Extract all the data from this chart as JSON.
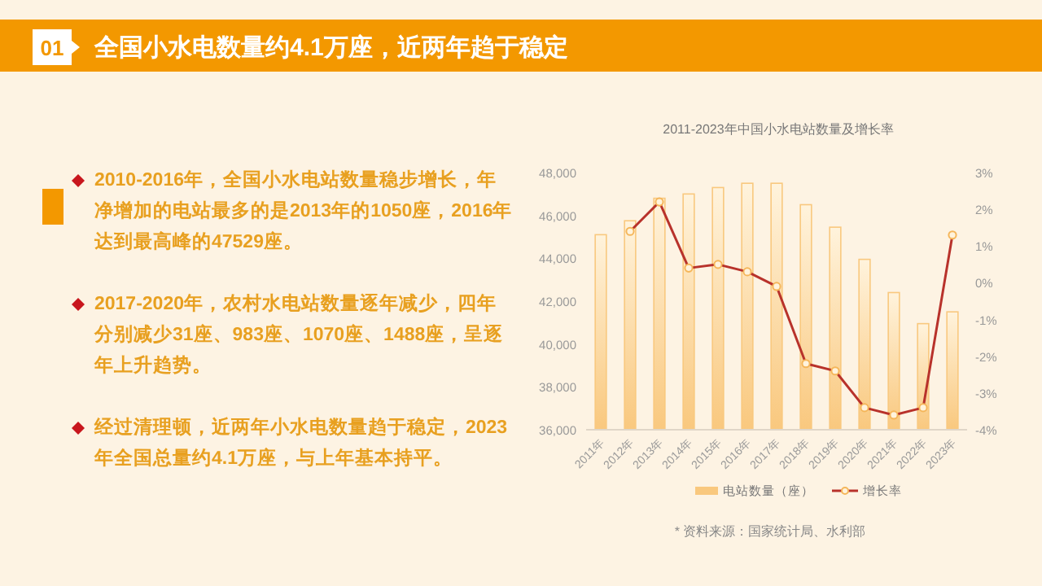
{
  "chart_data": {
    "type": "bar",
    "title": "全国小水电数量约4.1万座，近两年趋于稳定",
    "subtitle": "2011-2023年中国小水电站数量及增长率",
    "annotations": [
      "01",
      "2010-2016年，全国小水电站数量稳步增长，年净增加的电站最多的是2013年的1050座，2016年达到最高峰的47529座。",
      "2017-2020年，农村水电站数量逐年减少，四年分别减少31座、983座、1070座、1488座，呈逐年上升趋势。",
      "经过清理顿，近两年小水电数量趋于稳定，2023年全国总量约4.1万座，与上年基本持平。",
      "* 资料来源：国家统计局、水利部"
    ],
    "categories": [
      "2011年",
      "2012年",
      "2013年",
      "2014年",
      "2015年",
      "2016年",
      "2017年",
      "2018年",
      "2019年",
      "2020年",
      "2021年",
      "2022年",
      "2023年"
    ],
    "series": [
      {
        "name": "电站数量（座）",
        "type": "bar",
        "color": "#f9c87e",
        "values": [
          45100,
          45750,
          46800,
          47000,
          47300,
          47500,
          47500,
          46500,
          45450,
          43950,
          42400,
          40950,
          41500
        ]
      },
      {
        "name": "增长率",
        "type": "line",
        "axis": "y2",
        "color": "#b8322b",
        "marker": "circle",
        "values": [
          null,
          1.4,
          2.2,
          0.4,
          0.5,
          0.3,
          -0.1,
          -2.2,
          -2.4,
          -3.4,
          -3.6,
          -3.4,
          1.3
        ]
      }
    ],
    "ylim": [
      36000,
      48000
    ],
    "yticks": [
      {
        "value": 36000,
        "label": "36,000"
      },
      {
        "value": 38000,
        "label": "38,000"
      },
      {
        "value": 40000,
        "label": "40,000"
      },
      {
        "value": 42000,
        "label": "42,000"
      },
      {
        "value": 44000,
        "label": "44,000"
      },
      {
        "value": 46000,
        "label": "46,000"
      },
      {
        "value": 48000,
        "label": "48,000"
      }
    ],
    "y2lim": [
      -4,
      3
    ],
    "y2ticks": [
      {
        "value": -4,
        "label": "-4%"
      },
      {
        "value": -3,
        "label": "-3%"
      },
      {
        "value": -2,
        "label": "-2%"
      },
      {
        "value": -1,
        "label": "-1%"
      },
      {
        "value": 0,
        "label": "0%"
      },
      {
        "value": 1,
        "label": "1%"
      },
      {
        "value": 2,
        "label": "2%"
      },
      {
        "value": 3,
        "label": "3%"
      }
    ],
    "legend": "bottom",
    "grid": false
  }
}
